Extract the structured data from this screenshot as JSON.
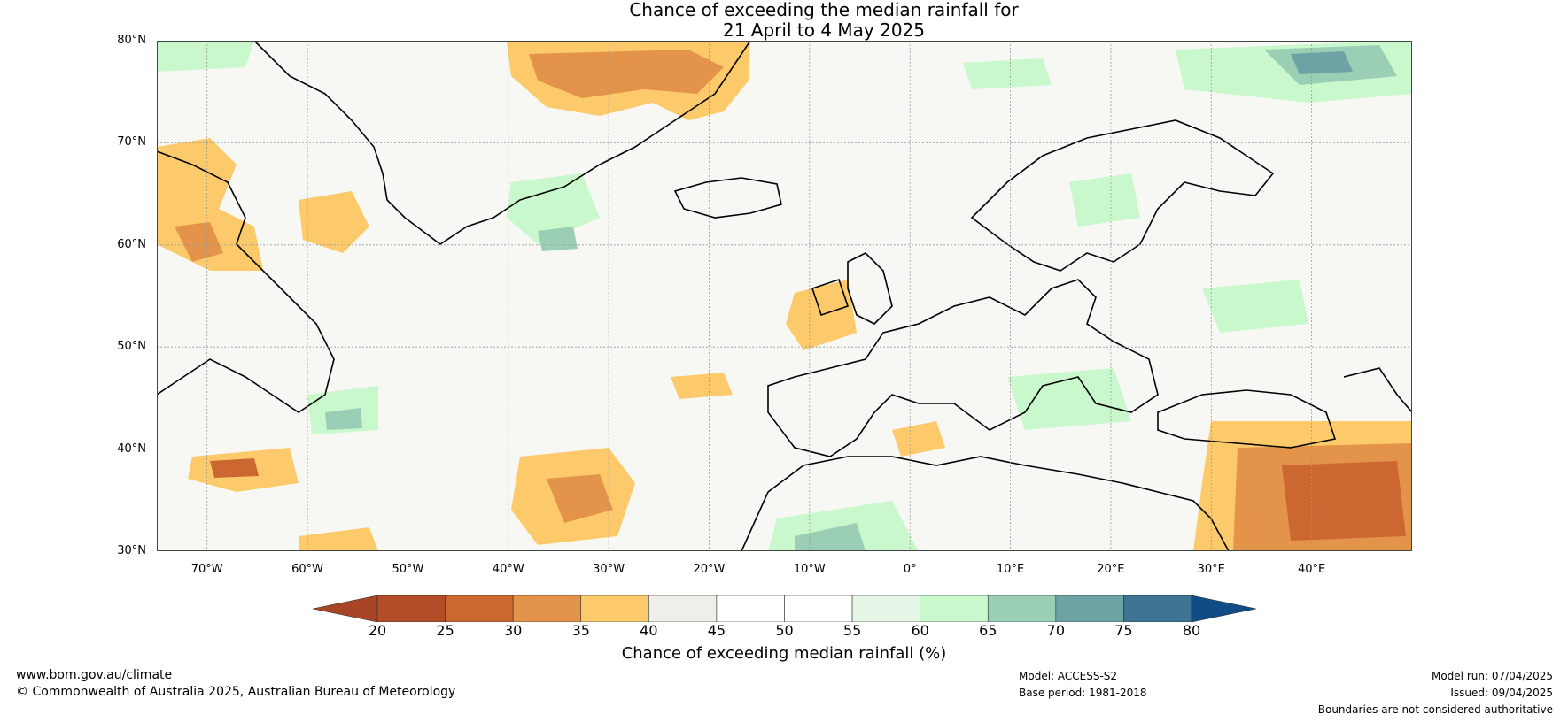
{
  "title": {
    "line1": "Chance of exceeding the median rainfall for",
    "line2": "21 April to 4 May 2025"
  },
  "map": {
    "lat_range": [
      30,
      80
    ],
    "lon_range": [
      -75,
      50
    ],
    "lat_labels": [
      "80°N",
      "70°N",
      "60°N",
      "50°N",
      "40°N",
      "30°N"
    ],
    "lon_labels": [
      "70°W",
      "60°W",
      "50°W",
      "40°W",
      "30°W",
      "20°W",
      "10°W",
      "0°",
      "10°E",
      "20°E",
      "30°E",
      "40°E"
    ],
    "grid": true
  },
  "colorbar": {
    "ticks": [
      "20",
      "25",
      "30",
      "35",
      "40",
      "45",
      "50",
      "55",
      "60",
      "65",
      "70",
      "75",
      "80"
    ],
    "colors": [
      "#a84526",
      "#b34c27",
      "#cd6731",
      "#e3934a",
      "#fdca6b",
      "#efeee8",
      "#ffffff",
      "#ffffff",
      "#e6f6e6",
      "#c8f8cc",
      "#9acfb6",
      "#6da3a5",
      "#3d7393",
      "#114c86"
    ],
    "label": "Chance of exceeding median rainfall (%)"
  },
  "footer": {
    "website": "www.bom.gov.au/climate",
    "copyright": "© Commonwealth of Australia 2025, Australian Bureau of Meteorology",
    "model": "Model: ACCESS-S2",
    "base_period": "Base period: 1981-2018",
    "model_run": "Model run: 07/04/2025",
    "issued": "Issued: 09/04/2025",
    "disclaimer": "Boundaries are not considered authoritative"
  }
}
